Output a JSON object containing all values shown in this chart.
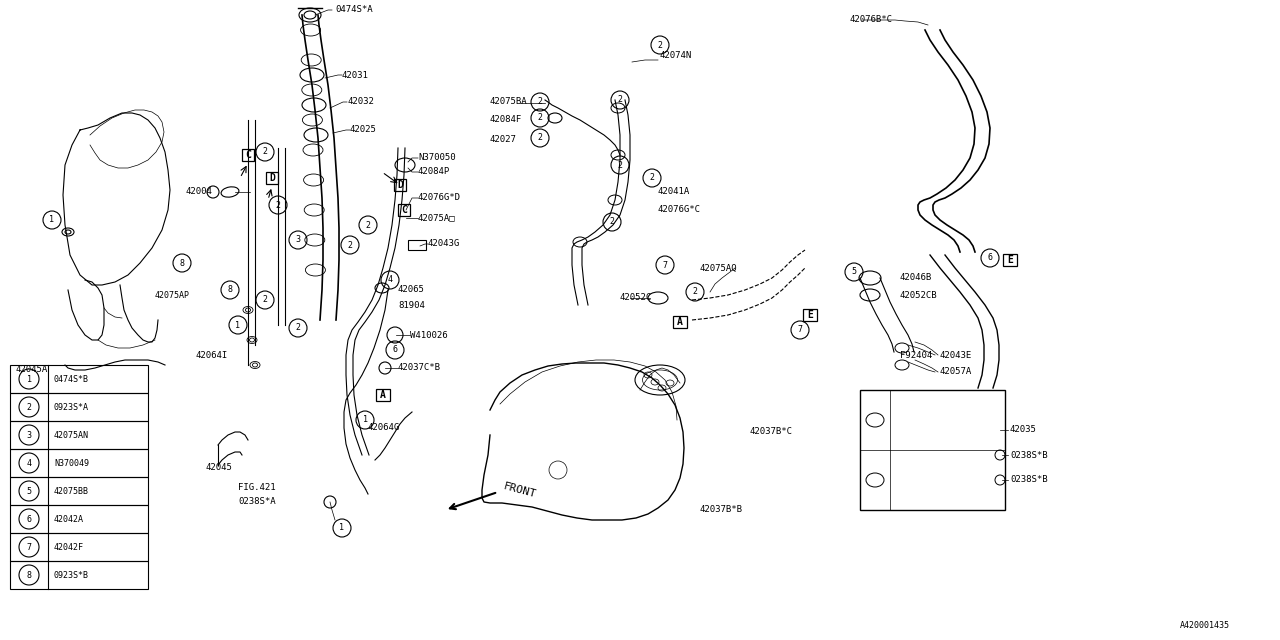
{
  "bg_color": "#ffffff",
  "line_color": "#000000",
  "diagram_id": "A420001435",
  "legend": [
    {
      "num": 1,
      "part": "0474S*B"
    },
    {
      "num": 2,
      "part": "0923S*A"
    },
    {
      "num": 3,
      "part": "42075AN"
    },
    {
      "num": 4,
      "part": "N370049"
    },
    {
      "num": 5,
      "part": "42075BB"
    },
    {
      "num": 6,
      "part": "42042A"
    },
    {
      "num": 7,
      "part": "42042F"
    },
    {
      "num": 8,
      "part": "0923S*B"
    }
  ]
}
